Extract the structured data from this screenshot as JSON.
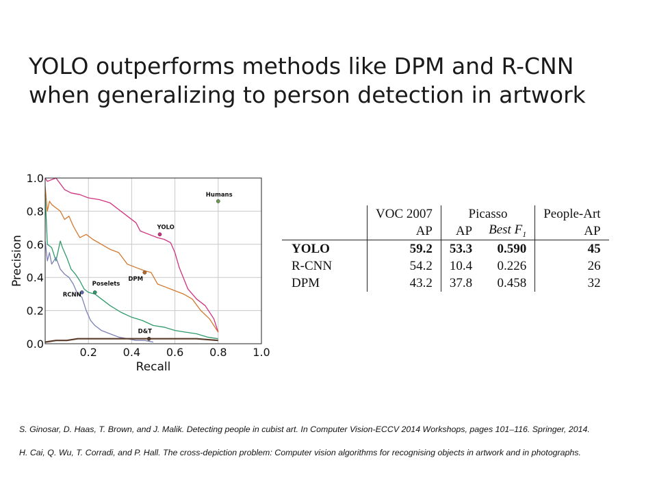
{
  "slide": {
    "title_lines": [
      "YOLO outperforms methods like DPM and R-CNN",
      "when generalizing to person detection in artwork"
    ]
  },
  "chart_data": {
    "type": "line",
    "xlabel": "Recall",
    "ylabel": "Precision",
    "xlim": [
      0,
      1.0
    ],
    "ylim": [
      0,
      1.0
    ],
    "xticks": [
      "0.2",
      "0.4",
      "0.6",
      "0.8",
      "1.0"
    ],
    "yticks": [
      "0.0",
      "0.2",
      "0.4",
      "0.6",
      "0.8",
      "1.0"
    ],
    "grid": true,
    "series": [
      {
        "name": "YOLO",
        "color": "#d0307f",
        "x": [
          0.0,
          0.01,
          0.03,
          0.05,
          0.09,
          0.12,
          0.16,
          0.2,
          0.25,
          0.3,
          0.34,
          0.38,
          0.42,
          0.44,
          0.48,
          0.52,
          0.55,
          0.58,
          0.6,
          0.62,
          0.66,
          0.7,
          0.74,
          0.78,
          0.8
        ],
        "y": [
          1.0,
          0.98,
          0.99,
          1.0,
          0.93,
          0.91,
          0.9,
          0.88,
          0.87,
          0.85,
          0.81,
          0.77,
          0.73,
          0.68,
          0.66,
          0.64,
          0.63,
          0.61,
          0.55,
          0.46,
          0.33,
          0.27,
          0.23,
          0.15,
          0.07
        ]
      },
      {
        "name": "DPM",
        "color": "#d2782e",
        "x": [
          0.0,
          0.01,
          0.02,
          0.03,
          0.05,
          0.07,
          0.09,
          0.11,
          0.13,
          0.16,
          0.19,
          0.22,
          0.26,
          0.3,
          0.34,
          0.38,
          0.42,
          0.46,
          0.49,
          0.52,
          0.56,
          0.6,
          0.64,
          0.68,
          0.72,
          0.76,
          0.8
        ],
        "y": [
          0.95,
          0.8,
          0.86,
          0.84,
          0.82,
          0.8,
          0.75,
          0.77,
          0.71,
          0.64,
          0.66,
          0.63,
          0.6,
          0.57,
          0.55,
          0.48,
          0.46,
          0.44,
          0.43,
          0.36,
          0.34,
          0.32,
          0.3,
          0.27,
          0.2,
          0.15,
          0.07
        ]
      },
      {
        "name": "Poselets",
        "color": "#2e9a6b",
        "x": [
          0.0,
          0.01,
          0.03,
          0.05,
          0.07,
          0.08,
          0.1,
          0.12,
          0.14,
          0.16,
          0.18,
          0.2,
          0.23,
          0.26,
          0.3,
          0.35,
          0.4,
          0.45,
          0.5,
          0.55,
          0.6,
          0.65,
          0.7,
          0.75,
          0.8
        ],
        "y": [
          0.9,
          0.6,
          0.58,
          0.5,
          0.62,
          0.58,
          0.52,
          0.45,
          0.42,
          0.38,
          0.33,
          0.31,
          0.3,
          0.27,
          0.23,
          0.19,
          0.16,
          0.14,
          0.11,
          0.1,
          0.08,
          0.07,
          0.06,
          0.04,
          0.03
        ]
      },
      {
        "name": "RCNN",
        "color": "#7b7fb5",
        "x": [
          0.0,
          0.01,
          0.02,
          0.03,
          0.05,
          0.07,
          0.09,
          0.11,
          0.13,
          0.15,
          0.17,
          0.19,
          0.21,
          0.23,
          0.26,
          0.3,
          0.34,
          0.38,
          0.42,
          0.46,
          0.5
        ],
        "y": [
          0.62,
          0.5,
          0.55,
          0.48,
          0.52,
          0.45,
          0.42,
          0.4,
          0.36,
          0.3,
          0.28,
          0.2,
          0.14,
          0.11,
          0.08,
          0.06,
          0.04,
          0.03,
          0.02,
          0.02,
          0.01
        ]
      },
      {
        "name": "D&T",
        "color": "#5a3a28",
        "x": [
          0.0,
          0.05,
          0.1,
          0.15,
          0.2,
          0.3,
          0.4,
          0.5,
          0.6,
          0.7,
          0.8
        ],
        "y": [
          0.01,
          0.02,
          0.02,
          0.03,
          0.03,
          0.03,
          0.03,
          0.03,
          0.03,
          0.03,
          0.02
        ]
      }
    ],
    "markers": [
      {
        "name": "Humans",
        "x": 0.8,
        "y": 0.86,
        "color": "#6a9a4a"
      },
      {
        "name": "YOLO",
        "x": 0.53,
        "y": 0.66,
        "color": "#d0307f"
      },
      {
        "name": "DPM",
        "x": 0.46,
        "y": 0.43,
        "color": "#b86a2a"
      },
      {
        "name": "Poselets",
        "x": 0.23,
        "y": 0.31,
        "color": "#2e9a6b"
      },
      {
        "name": "RCNN",
        "x": 0.17,
        "y": 0.31,
        "color": "#5b6aa8"
      },
      {
        "name": "D&T",
        "x": 0.48,
        "y": 0.03,
        "color": "#5a3a28"
      }
    ]
  },
  "table": {
    "header_row1": [
      "",
      "VOC 2007",
      "Picasso",
      "People-Art"
    ],
    "header_row2": [
      "",
      "AP",
      "AP",
      "Best F1",
      "AP"
    ],
    "rows": [
      {
        "method": "YOLO",
        "voc_ap": "59.2",
        "picasso_ap": "53.3",
        "picasso_f1": "0.590",
        "people_art_ap": "45"
      },
      {
        "method": "R-CNN",
        "voc_ap": "54.2",
        "picasso_ap": "10.4",
        "picasso_f1": "0.226",
        "people_art_ap": "26"
      },
      {
        "method": "DPM",
        "voc_ap": "43.2",
        "picasso_ap": "37.8",
        "picasso_f1": "0.458",
        "people_art_ap": "32"
      }
    ]
  },
  "references": [
    "S. Ginosar, D. Haas, T. Brown, and J. Malik. Detecting people in cubist art. In Computer Vision-ECCV 2014 Workshops, pages 101–116. Springer, 2014.",
    "H. Cai, Q. Wu, T. Corradi, and P. Hall. The cross-depiction problem: Computer vision algorithms for recognising objects in artwork and in photographs."
  ]
}
